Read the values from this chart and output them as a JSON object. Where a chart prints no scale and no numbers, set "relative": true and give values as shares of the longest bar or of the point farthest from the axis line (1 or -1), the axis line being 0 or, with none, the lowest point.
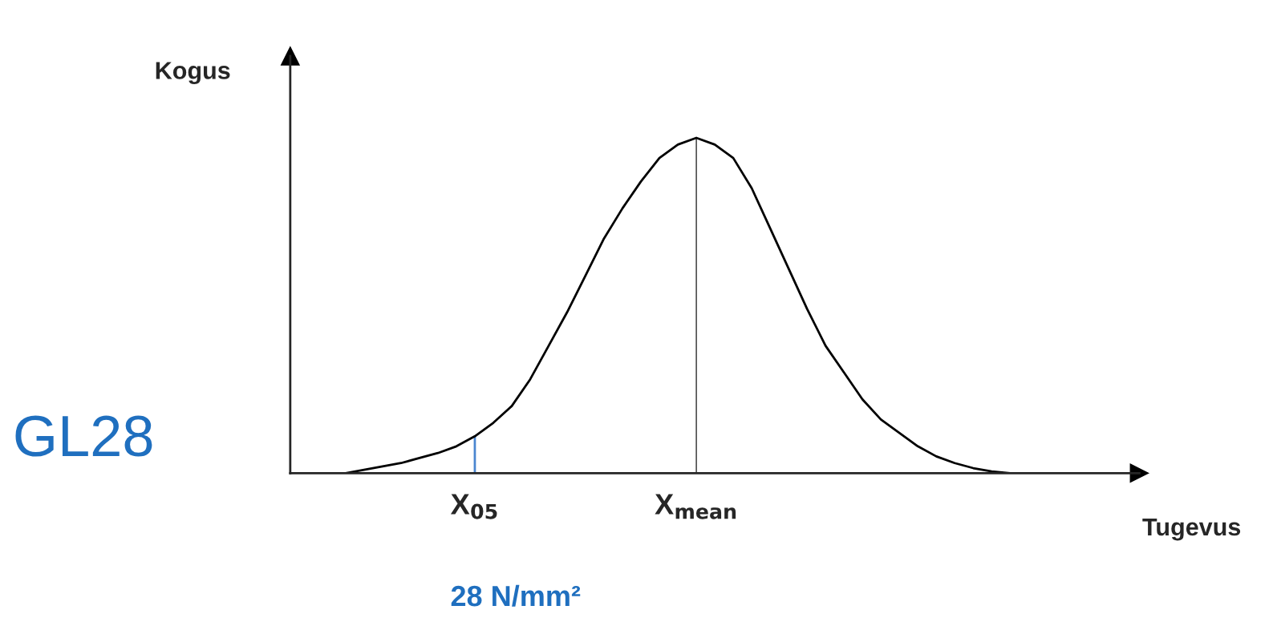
{
  "chart_data": {
    "type": "line",
    "relative": true,
    "xlabel": "Tugevus",
    "ylabel": "Kogus",
    "annotations": [
      "GL28",
      "28 N/mm²"
    ],
    "categories": [
      null,
      null,
      null,
      null,
      null,
      null,
      null,
      null,
      null,
      null,
      "X$_{05}$",
      null,
      null,
      null,
      null,
      null,
      null,
      null,
      null,
      null,
      null,
      null,
      "X$_{mean}$",
      null,
      null,
      null,
      null,
      null,
      null,
      null,
      null,
      null,
      null,
      null,
      null,
      null,
      null,
      null,
      null,
      null,
      null,
      null,
      null,
      null,
      null,
      null,
      null
    ],
    "series": [
      {
        "color": "#000000",
        "values": [
          null,
          null,
          null,
          0,
          0.01,
          0.02,
          0.03,
          0.045,
          0.06,
          0.08,
          0.11,
          0.15,
          0.2,
          0.28,
          0.38,
          0.48,
          0.59,
          0.7,
          0.79,
          0.87,
          0.94,
          0.98,
          1,
          0.98,
          0.94,
          0.85,
          0.73,
          0.61,
          0.49,
          0.38,
          0.3,
          0.22,
          0.16,
          0.12,
          0.08,
          0.05,
          0.03,
          0.015,
          0.005,
          0,
          null,
          null,
          null,
          null,
          null,
          null,
          null
        ]
      },
      {
        "type": "bar",
        "colors": [
          null,
          null,
          null,
          null,
          null,
          null,
          null,
          null,
          null,
          null,
          "#4a86d0",
          null,
          null,
          null,
          null,
          null,
          null,
          null,
          null,
          null,
          null,
          null,
          "#000000",
          null,
          null,
          null,
          null,
          null,
          null,
          null,
          null,
          null,
          null,
          null,
          null,
          null,
          null,
          null,
          null,
          null,
          null,
          null,
          null,
          null,
          null,
          null,
          null
        ],
        "values": [
          null,
          null,
          null,
          null,
          null,
          null,
          null,
          null,
          null,
          null,
          0.11,
          null,
          null,
          null,
          null,
          null,
          null,
          null,
          null,
          null,
          null,
          null,
          1,
          null,
          null,
          null,
          null,
          null,
          null,
          null,
          null,
          null,
          null,
          null,
          null,
          null,
          null,
          null,
          null,
          null,
          null,
          null,
          null,
          null,
          null,
          null,
          null
        ]
      }
    ],
    "grid": false,
    "legend": false
  }
}
